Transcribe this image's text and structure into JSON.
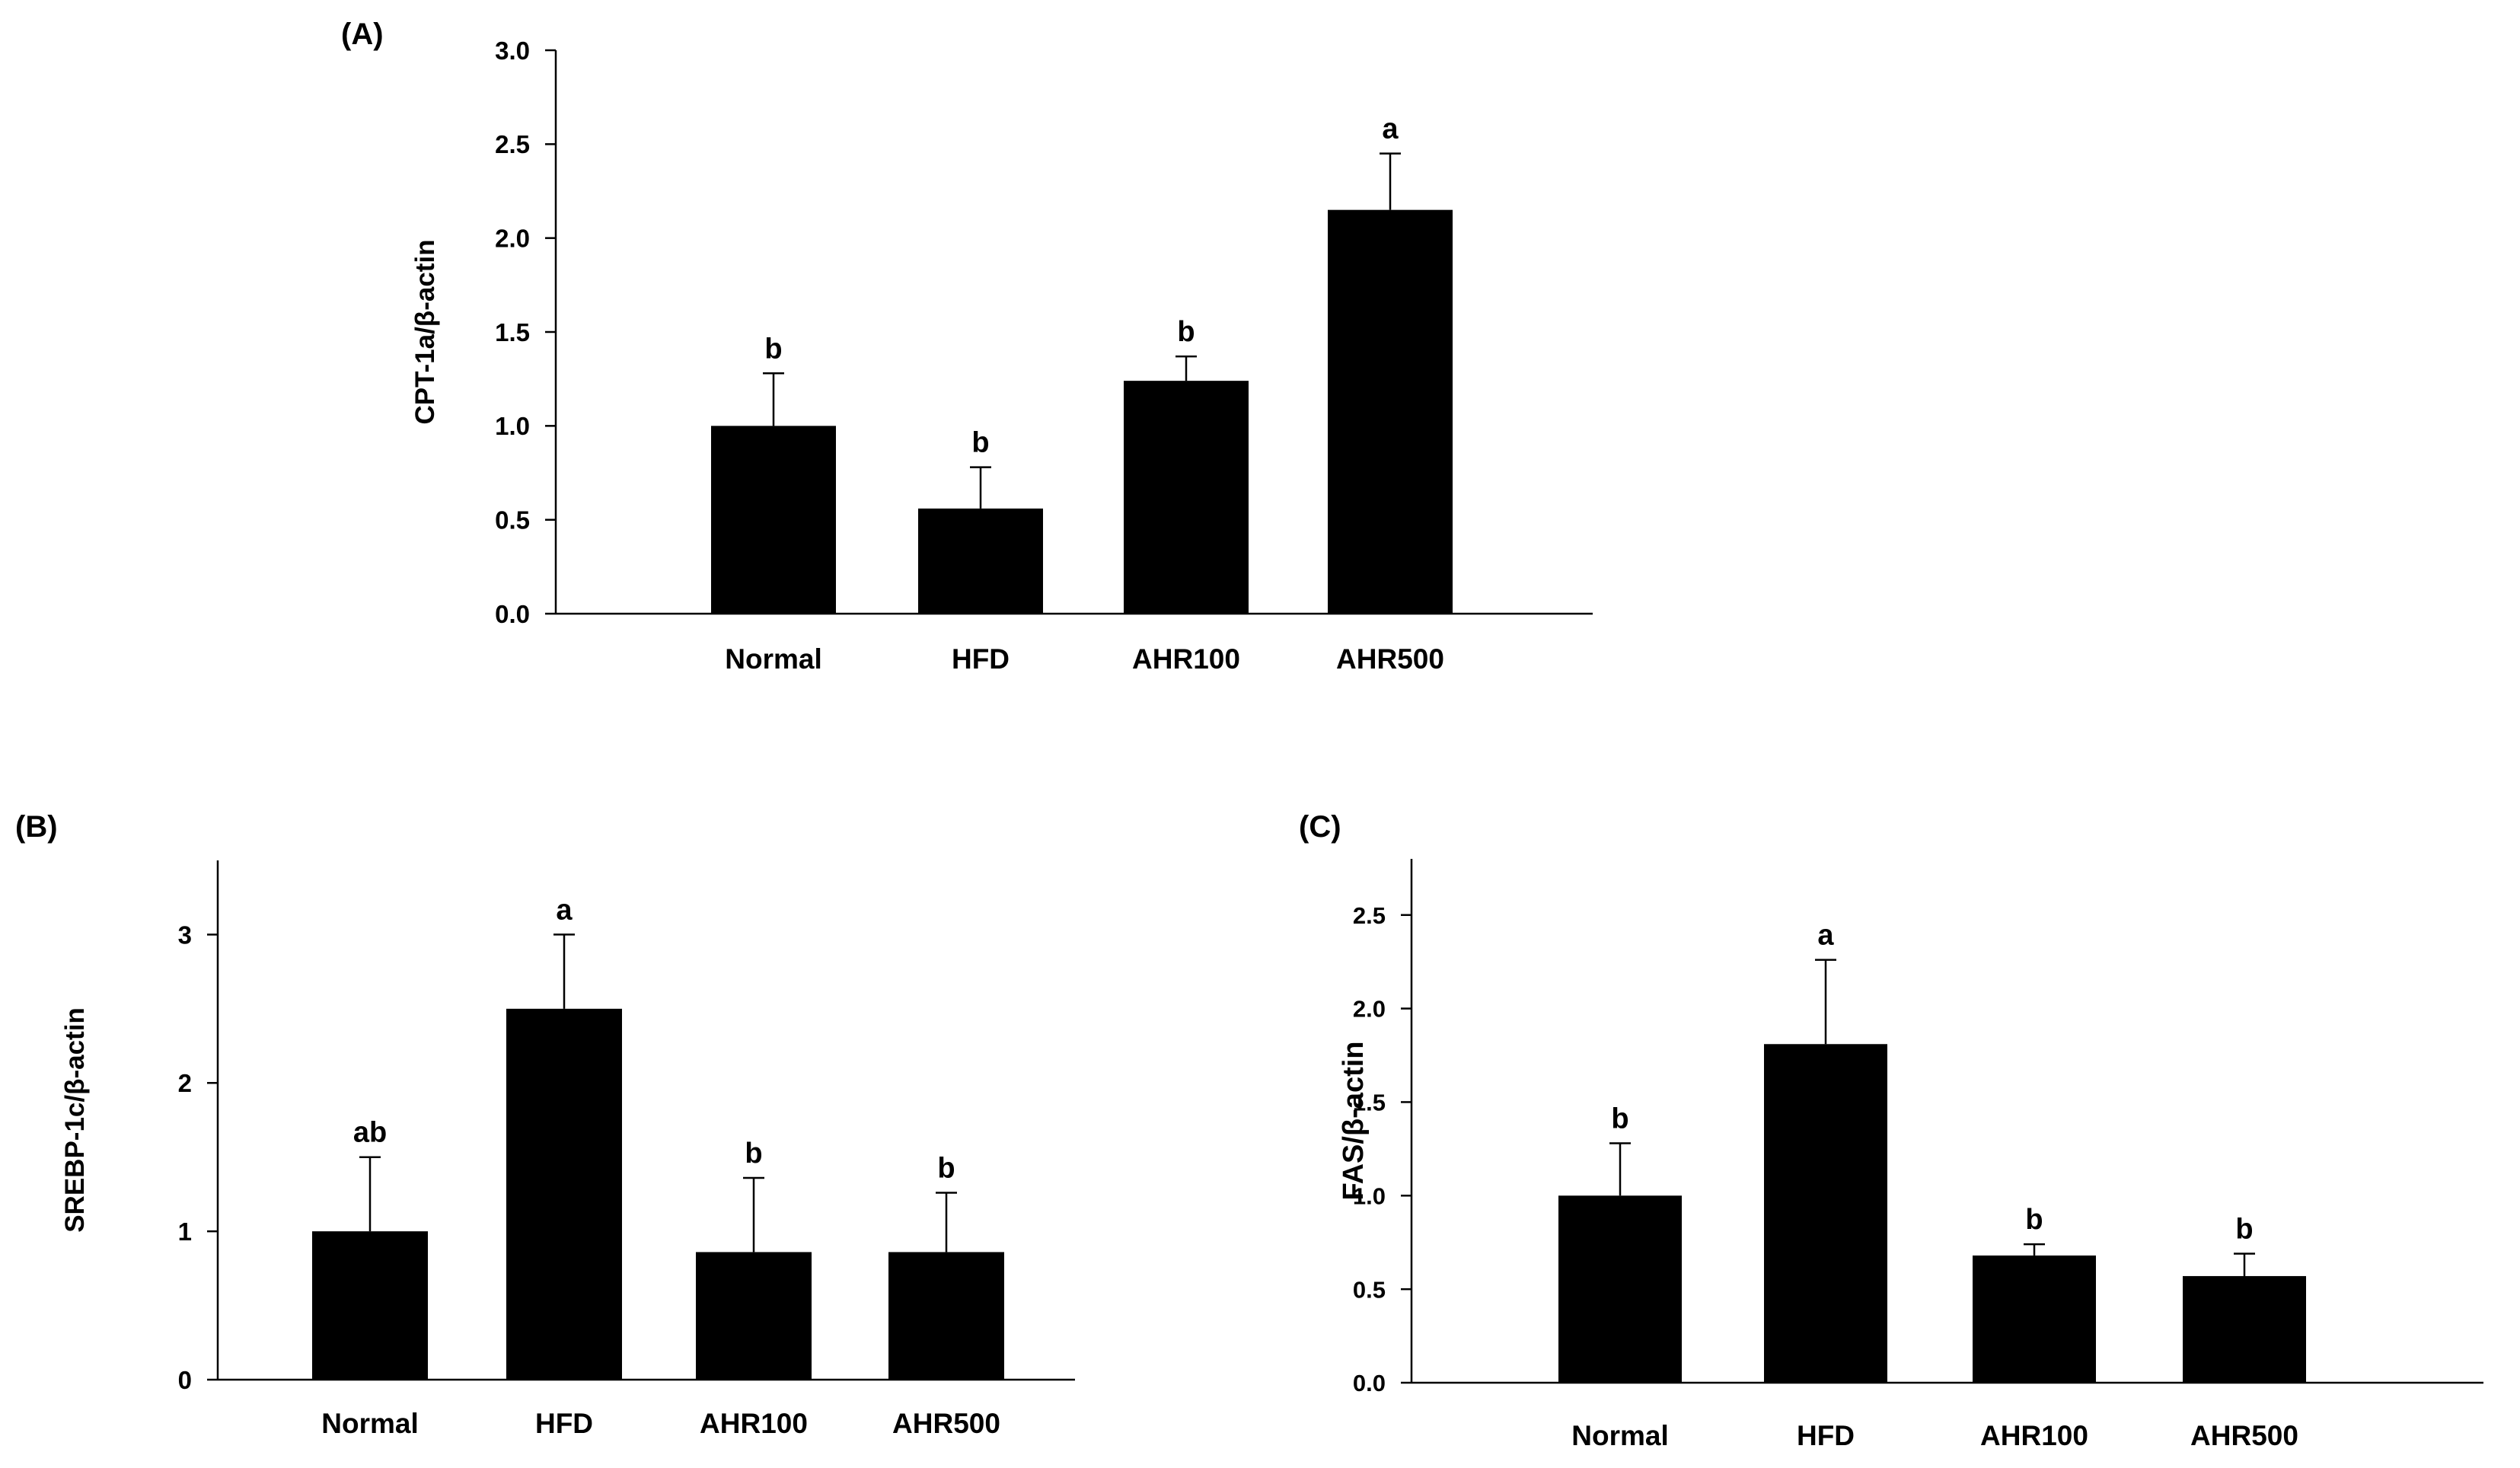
{
  "chart_data": [
    {
      "panel": "(A)",
      "type": "bar",
      "categories": [
        "Normal",
        "HFD",
        "AHR100",
        "AHR500"
      ],
      "values": [
        1.0,
        0.56,
        1.24,
        2.15
      ],
      "errors": [
        0.28,
        0.22,
        0.13,
        0.3
      ],
      "significance": [
        "b",
        "b",
        "b",
        "a"
      ],
      "ylabel": "CPT-1a/β-actin",
      "ylim": [
        0,
        3.0
      ],
      "yticks": [
        0.0,
        0.5,
        1.0,
        1.5,
        2.0,
        2.5,
        3.0
      ],
      "ytick_labels": [
        "0.0",
        "0.5",
        "1.0",
        "1.5",
        "2.0",
        "2.5",
        "3.0"
      ]
    },
    {
      "panel": "(B)",
      "type": "bar",
      "categories": [
        "Normal",
        "HFD",
        "AHR100",
        "AHR500"
      ],
      "values": [
        1.0,
        2.5,
        0.86,
        0.86
      ],
      "errors": [
        0.5,
        0.5,
        0.5,
        0.4
      ],
      "significance": [
        "ab",
        "a",
        "b",
        "b"
      ],
      "ylabel": "SREBP-1c/β-actin",
      "ylim": [
        0,
        3.5
      ],
      "yticks": [
        0,
        1,
        2,
        3
      ],
      "ytick_labels": [
        "0",
        "1",
        "2",
        "3"
      ]
    },
    {
      "panel": "(C)",
      "type": "bar",
      "categories": [
        "Normal",
        "HFD",
        "AHR100",
        "AHR500"
      ],
      "values": [
        1.0,
        1.81,
        0.68,
        0.57
      ],
      "errors": [
        0.28,
        0.45,
        0.06,
        0.12
      ],
      "significance": [
        "b",
        "a",
        "b",
        "b"
      ],
      "ylabel": "FAS/β-actin",
      "ylim": [
        0,
        2.8
      ],
      "yticks": [
        0.0,
        0.5,
        1.0,
        1.5,
        2.0,
        2.5
      ],
      "ytick_labels": [
        "0.0",
        "0.5",
        "1.0",
        "1.5",
        "2.0",
        "2.5"
      ]
    }
  ]
}
